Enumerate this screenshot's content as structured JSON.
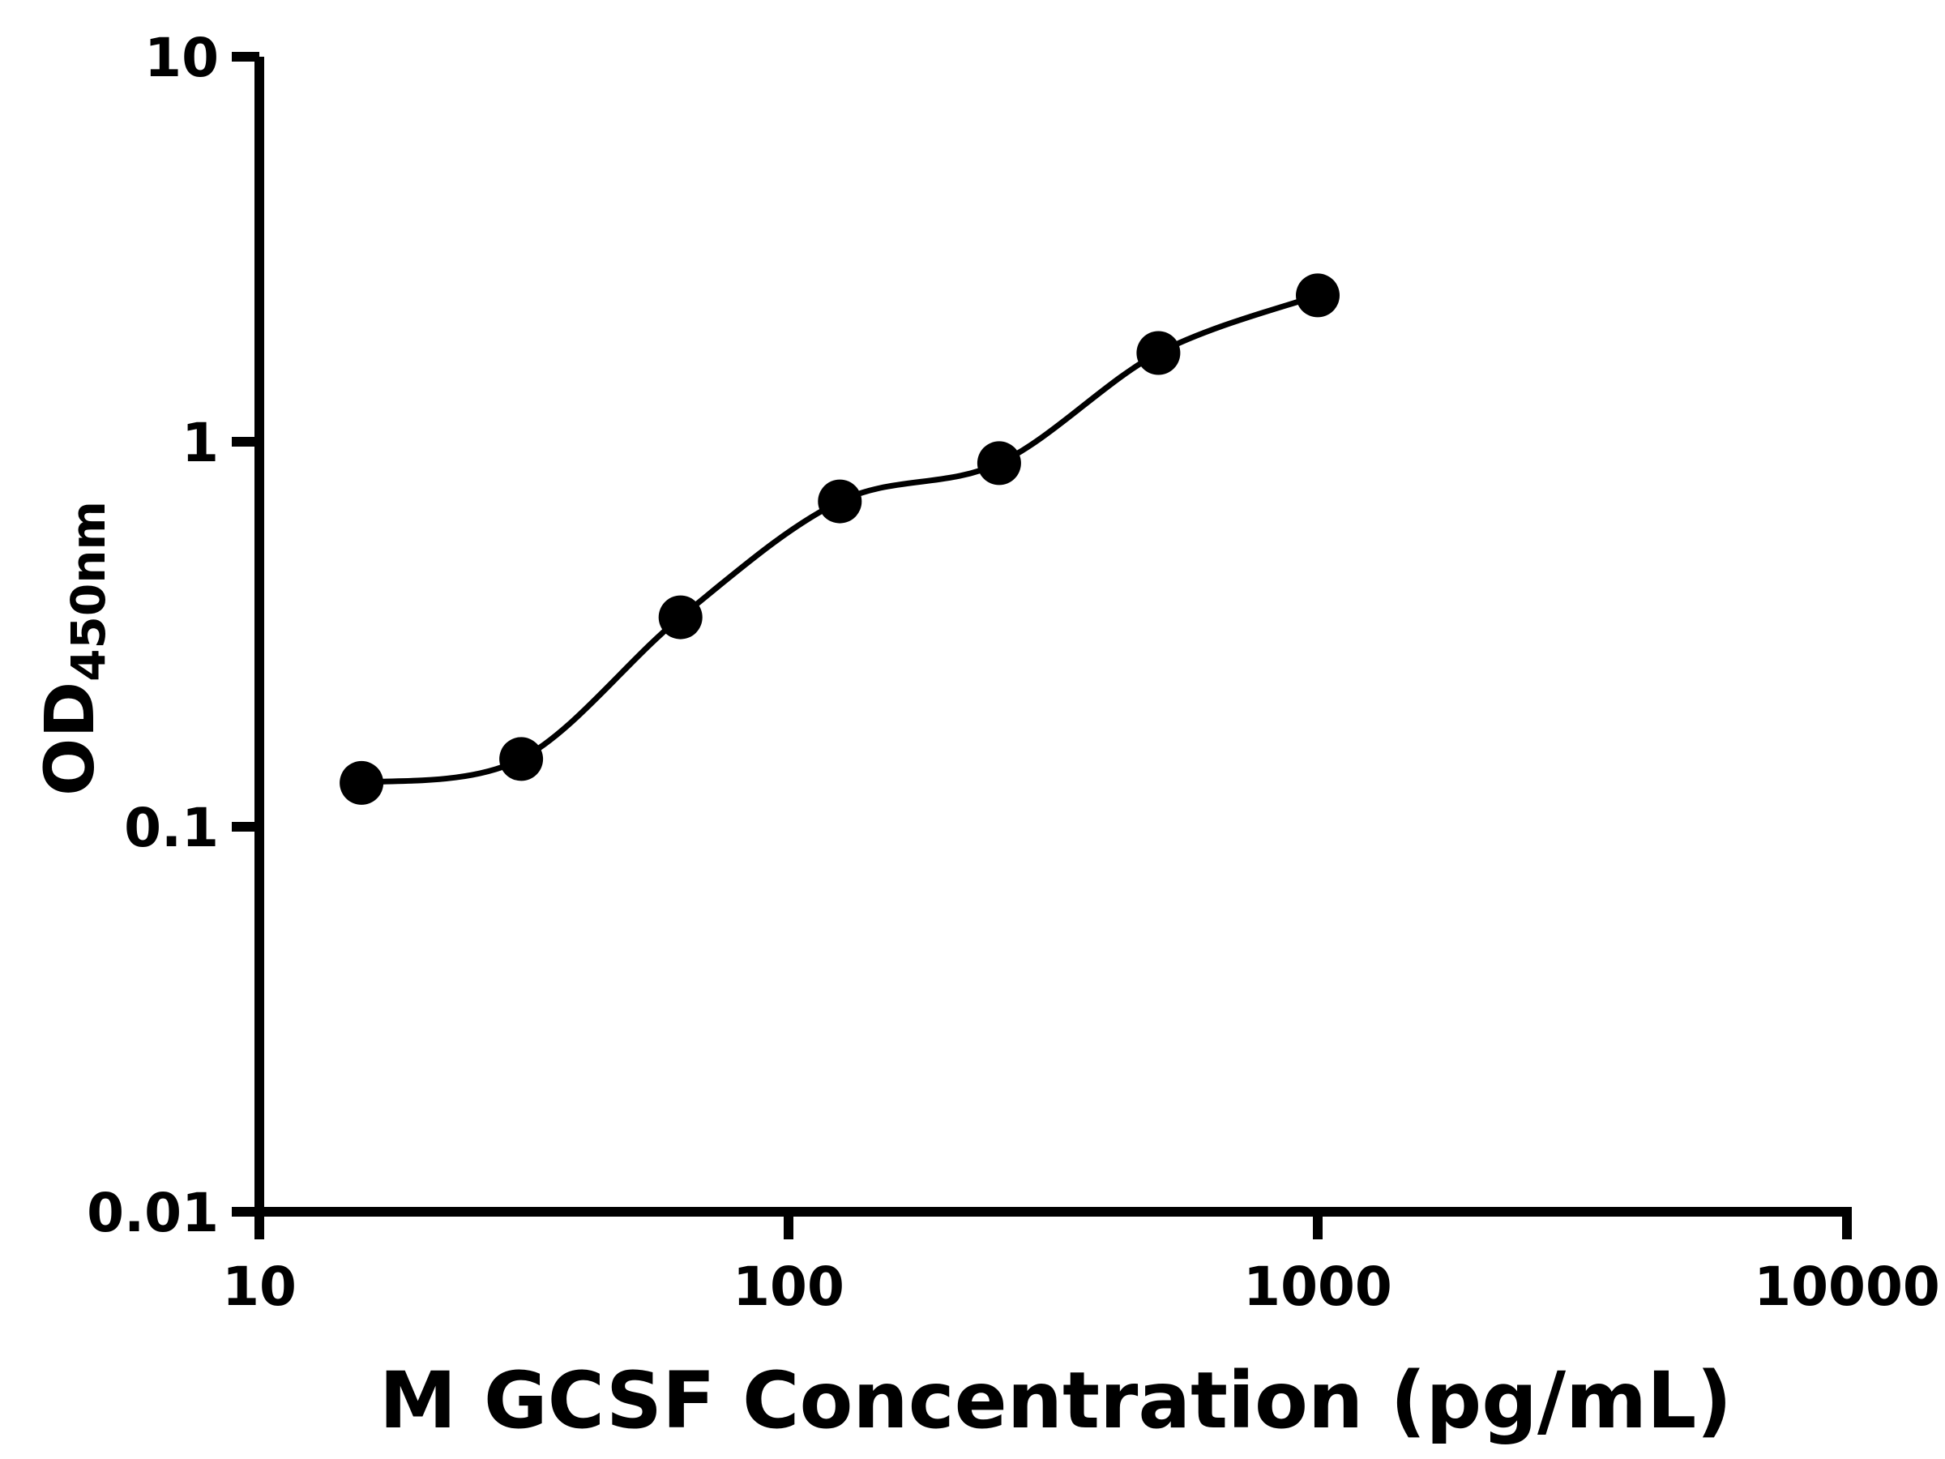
{
  "chart_data": {
    "type": "scatter",
    "title": "",
    "xlabel": "M GCSF Concentration (pg/mL)",
    "ylabel_main": "OD",
    "ylabel_sub": "450nm",
    "x_scale": "log",
    "y_scale": "log",
    "xlim": [
      10,
      10000
    ],
    "ylim": [
      0.01,
      10
    ],
    "x_ticks": [
      10,
      100,
      1000,
      10000
    ],
    "x_tick_labels": [
      "10",
      "100",
      "1000",
      "10000"
    ],
    "y_ticks": [
      0.01,
      0.1,
      1,
      10
    ],
    "y_tick_labels": [
      "0.01",
      "0.1",
      "1",
      "10"
    ],
    "x": [
      15.6,
      31.25,
      62.5,
      125,
      250,
      500,
      1000
    ],
    "y": [
      0.13,
      0.15,
      0.35,
      0.7,
      0.88,
      1.7,
      2.4
    ],
    "fit_line": true,
    "grid": false,
    "legend": "none",
    "marker_color": "#000000",
    "line_color": "#000000",
    "axis_color": "#000000",
    "background": "#ffffff"
  }
}
